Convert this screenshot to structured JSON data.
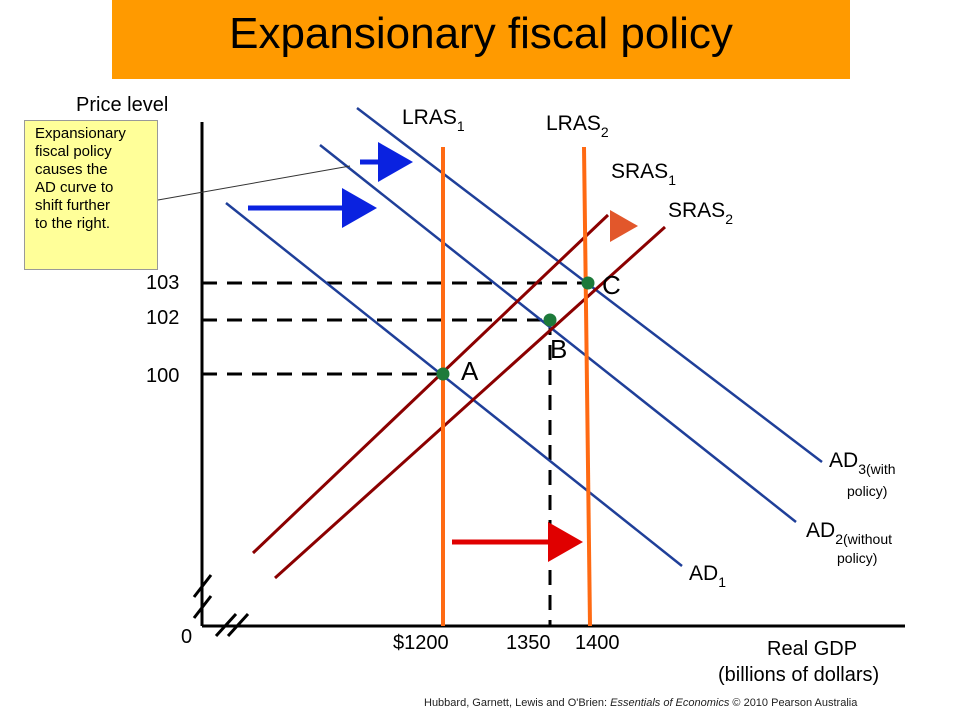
{
  "title": "Expansionary fiscal policy",
  "axes": {
    "y_label": "Price level",
    "x_label_line1": "Real GDP",
    "x_label_line2": "(billions of dollars)",
    "origin": "0",
    "x_ticks": [
      "$1200",
      "1350",
      "1400"
    ],
    "y_ticks": [
      "103",
      "102",
      "100"
    ]
  },
  "curves": {
    "lras1": {
      "base": "LRAS",
      "sub": "1"
    },
    "lras2": {
      "base": "LRAS",
      "sub": "2"
    },
    "sras1": {
      "base": "SRAS",
      "sub": "1"
    },
    "sras2": {
      "base": "SRAS",
      "sub": "2"
    },
    "ad1": {
      "base": "AD",
      "sub": "1"
    },
    "ad2": {
      "base": "AD",
      "sub": "2(without",
      "line2": "policy)"
    },
    "ad3": {
      "base": "AD",
      "sub": "3(with",
      "line2": "policy)"
    }
  },
  "points": {
    "a": "A",
    "b": "B",
    "c": "C"
  },
  "callout": {
    "lines": [
      "Expansionary",
      "fiscal policy",
      "causes the",
      "AD curve to",
      "shift further",
      "to the right."
    ]
  },
  "credit": {
    "prefix": "Hubbard, Garnett, Lewis and O'Brien: ",
    "book": "Essentials of Economics",
    "suffix": " © 2010 Pearson Australia"
  },
  "colors": {
    "title_bg": "#ff9a00",
    "ad_curves": "#1f3f99",
    "sras_curves": "#8b0000",
    "lras_curves": "#ff6a13",
    "equilibrium_points": "#1d7a3a",
    "callout_bg": "#ffff99",
    "arrow_blue": "#0a22e0",
    "arrow_red": "#e00000"
  }
}
